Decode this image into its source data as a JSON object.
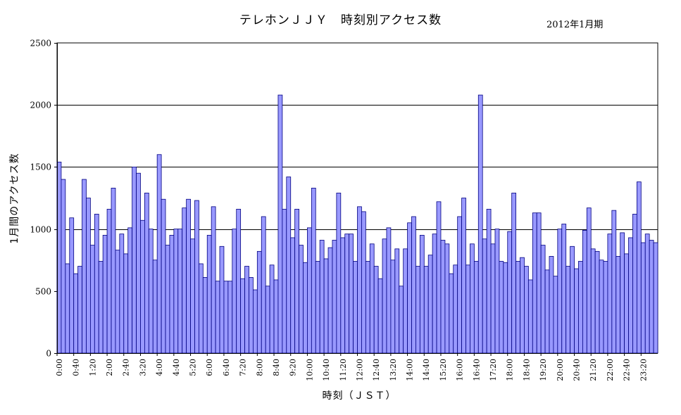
{
  "chart_data": {
    "type": "bar",
    "title": "テレホンＪＪＹ　時刻別アクセス数",
    "subtitle": "2012年1月期",
    "xlabel": "時刻（ＪＳＴ）",
    "ylabel": "1月間のアクセス数",
    "ylim": [
      0,
      2500
    ],
    "yticks": [
      0,
      500,
      1000,
      1500,
      2000,
      2500
    ],
    "grid": true,
    "bar_color": "#9999ff",
    "bar_edge_color": "#000080",
    "xtick_labels": [
      "0:00",
      "0:40",
      "1:20",
      "2:00",
      "2:40",
      "3:20",
      "4:00",
      "4:40",
      "5:20",
      "6:00",
      "6:40",
      "7:20",
      "8:00",
      "8:40",
      "9:20",
      "10:00",
      "10:40",
      "11:20",
      "12:00",
      "12:40",
      "13:20",
      "14:00",
      "14:40",
      "15:20",
      "16:00",
      "16:40",
      "17:20",
      "18:00",
      "18:40",
      "19:20",
      "20:00",
      "20:40",
      "21:20",
      "22:00",
      "22:40",
      "23:20"
    ],
    "categories": [
      "0:00",
      "0:10",
      "0:20",
      "0:30",
      "0:40",
      "0:50",
      "1:00",
      "1:10",
      "1:20",
      "1:30",
      "1:40",
      "1:50",
      "2:00",
      "2:10",
      "2:20",
      "2:30",
      "2:40",
      "2:50",
      "3:00",
      "3:10",
      "3:20",
      "3:30",
      "3:40",
      "3:50",
      "4:00",
      "4:10",
      "4:20",
      "4:30",
      "4:40",
      "4:50",
      "5:00",
      "5:10",
      "5:20",
      "5:30",
      "5:40",
      "5:50",
      "6:00",
      "6:10",
      "6:20",
      "6:30",
      "6:40",
      "6:50",
      "7:00",
      "7:10",
      "7:20",
      "7:30",
      "7:40",
      "7:50",
      "8:00",
      "8:10",
      "8:20",
      "8:30",
      "8:40",
      "8:50",
      "9:00",
      "9:10",
      "9:20",
      "9:30",
      "9:40",
      "9:50",
      "10:00",
      "10:10",
      "10:20",
      "10:30",
      "10:40",
      "10:50",
      "11:00",
      "11:10",
      "11:20",
      "11:30",
      "11:40",
      "11:50",
      "12:00",
      "12:10",
      "12:20",
      "12:30",
      "12:40",
      "12:50",
      "13:00",
      "13:10",
      "13:20",
      "13:30",
      "13:40",
      "13:50",
      "14:00",
      "14:10",
      "14:20",
      "14:30",
      "14:40",
      "14:50",
      "15:00",
      "15:10",
      "15:20",
      "15:30",
      "15:40",
      "15:50",
      "16:00",
      "16:10",
      "16:20",
      "16:30",
      "16:40",
      "16:50",
      "17:00",
      "17:10",
      "17:20",
      "17:30",
      "17:40",
      "17:50",
      "18:00",
      "18:10",
      "18:20",
      "18:30",
      "18:40",
      "18:50",
      "19:00",
      "19:10",
      "19:20",
      "19:30",
      "19:40",
      "19:50",
      "20:00",
      "20:10",
      "20:20",
      "20:30",
      "20:40",
      "20:50",
      "21:00",
      "21:10",
      "21:20",
      "21:30",
      "21:40",
      "21:50",
      "22:00",
      "22:10",
      "22:20",
      "22:30",
      "22:40",
      "22:50",
      "23:00",
      "23:10",
      "23:20",
      "23:30",
      "23:40",
      "23:50"
    ],
    "values": [
      1540,
      1400,
      720,
      1090,
      640,
      700,
      1400,
      1250,
      870,
      1120,
      740,
      950,
      1160,
      1330,
      830,
      960,
      800,
      1010,
      1500,
      1450,
      1070,
      1290,
      1000,
      750,
      1600,
      1240,
      870,
      950,
      1000,
      1000,
      1170,
      1240,
      920,
      1230,
      720,
      610,
      950,
      1180,
      580,
      860,
      580,
      580,
      1000,
      1160,
      600,
      700,
      610,
      510,
      820,
      1100,
      540,
      710,
      590,
      2080,
      1160,
      1420,
      930,
      1160,
      870,
      730,
      1010,
      1330,
      740,
      910,
      760,
      850,
      910,
      1290,
      930,
      960,
      960,
      740,
      1180,
      1140,
      740,
      880,
      700,
      600,
      920,
      1010,
      750,
      840,
      540,
      840,
      1050,
      1100,
      700,
      950,
      700,
      790,
      960,
      1220,
      910,
      880,
      640,
      710,
      1100,
      1250,
      710,
      880,
      740,
      2080,
      920,
      1160,
      880,
      1000,
      740,
      730,
      980,
      1290,
      740,
      770,
      700,
      590,
      1130,
      1130,
      870,
      670,
      780,
      620,
      1000,
      1040,
      700,
      860,
      680,
      740,
      990,
      1170,
      840,
      820,
      750,
      740,
      960,
      1150,
      780,
      970,
      800,
      930,
      1120,
      1380,
      890,
      960,
      910,
      890
    ]
  }
}
